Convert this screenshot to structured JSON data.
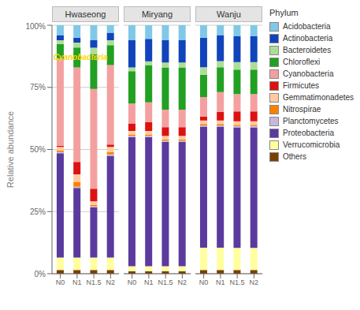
{
  "chart_data": [
    {
      "type": "bar",
      "stacked": true,
      "title": "Hwaseong",
      "categories": [
        "N0",
        "N1",
        "N1.5",
        "N2"
      ],
      "ylabel": "Relative abundance",
      "ylim": [
        0,
        100
      ],
      "yticks": [
        {
          "value": 0,
          "label": "0%"
        },
        {
          "value": 25,
          "label": "25%"
        },
        {
          "value": 50,
          "label": "50%"
        },
        {
          "value": 75,
          "label": "75%"
        },
        {
          "value": 100,
          "label": "100%"
        }
      ],
      "grid": true,
      "annotations": [
        {
          "text": "Cyanobacteria",
          "color": "#FFD700",
          "x": "N0",
          "y": 87
        }
      ],
      "series": [
        {
          "name": "Others",
          "color": "#7B3F00",
          "values": [
            1.5,
            1.5,
            1.50753768844,
            1.5
          ]
        },
        {
          "name": "Verrucomicrobia",
          "color": "#FFFFA0",
          "values": [
            5.0,
            5.0,
            5.02512562814,
            5.0
          ]
        },
        {
          "name": "Proteobacteria",
          "color": "#5B3A9E",
          "values": [
            42.0,
            28.0,
            20.1005025126,
            41.0
          ]
        },
        {
          "name": "Planctomycetes",
          "color": "#C8B8DC",
          "values": [
            0.5,
            0.5,
            0.502512562814,
            0.5
          ]
        },
        {
          "name": "Nitrospirae",
          "color": "#FF8000",
          "values": [
            0.5,
            2.0,
            0.502512562814,
            1.0
          ]
        },
        {
          "name": "Gemmatimonadetes",
          "color": "#FFCCA0",
          "values": [
            1.5,
            3.0,
            1.50753768844,
            2.0
          ]
        },
        {
          "name": "Firmicutes",
          "color": "#DD1111",
          "values": [
            0.5,
            5.0,
            5.02512562814,
            1.0
          ]
        },
        {
          "name": "Cyanobacteria",
          "color": "#F4A0A0",
          "values": [
            35.0,
            38.0,
            40.2010050251,
            32.0
          ]
        },
        {
          "name": "Chloroflexi",
          "color": "#22A022",
          "values": [
            6.0,
            8.0,
            14.0703517588,
            8.0
          ]
        },
        {
          "name": "Bacteroidetes",
          "color": "#AEDD99",
          "values": [
            1.5,
            2.0,
            2.51256281407,
            2.0
          ]
        },
        {
          "name": "Actinobacteria",
          "color": "#1144BB",
          "values": [
            2.0,
            2.0,
            3.01507537688,
            3.0
          ]
        },
        {
          "name": "Acidobacteria",
          "color": "#80C8E8",
          "values": [
            4.0,
            5.0,
            6.03015075377,
            3.0
          ]
        }
      ]
    },
    {
      "type": "bar",
      "stacked": true,
      "title": "Miryang",
      "categories": [
        "N0",
        "N1",
        "N1.5",
        "N2"
      ],
      "ylim": [
        0,
        100
      ],
      "yticks": [
        {
          "value": 0,
          "label": "0%"
        },
        {
          "value": 25,
          "label": "25%"
        },
        {
          "value": 50,
          "label": "50%"
        },
        {
          "value": 75,
          "label": "75%"
        },
        {
          "value": 100,
          "label": "100%"
        }
      ],
      "grid": true,
      "tick_labels": "x",
      "series": [
        {
          "name": "Others",
          "color": "#7B3F00",
          "values": [
            1.0,
            1.0,
            1.0,
            1.0
          ]
        },
        {
          "name": "Verrucomicrobia",
          "color": "#FFFFA0",
          "values": [
            2.0,
            2.0,
            2.0,
            2.0
          ]
        },
        {
          "name": "Proteobacteria",
          "color": "#5B3A9E",
          "values": [
            52.0,
            52.0,
            50.0,
            50.0
          ]
        },
        {
          "name": "Planctomycetes",
          "color": "#C8B8DC",
          "values": [
            0.5,
            0.5,
            0.5,
            0.5
          ]
        },
        {
          "name": "Nitrospirae",
          "color": "#FF8000",
          "values": [
            0.5,
            0.5,
            0.5,
            0.5
          ]
        },
        {
          "name": "Gemmatimonadetes",
          "color": "#FFCCA0",
          "values": [
            1.5,
            1.5,
            1.5,
            1.5
          ]
        },
        {
          "name": "Firmicutes",
          "color": "#DD1111",
          "values": [
            3.0,
            3.5,
            3.5,
            3.5
          ]
        },
        {
          "name": "Cyanobacteria",
          "color": "#F4A0A0",
          "values": [
            8.0,
            8.0,
            7.0,
            7.0
          ]
        },
        {
          "name": "Chloroflexi",
          "color": "#22A022",
          "values": [
            13.0,
            15.0,
            17.0,
            17.0
          ]
        },
        {
          "name": "Bacteroidetes",
          "color": "#AEDD99",
          "values": [
            1.5,
            1.5,
            2.0,
            2.0
          ]
        },
        {
          "name": "Actinobacteria",
          "color": "#1144BB",
          "values": [
            11.0,
            9.0,
            9.0,
            9.0
          ]
        },
        {
          "name": "Acidobacteria",
          "color": "#80C8E8",
          "values": [
            6.0,
            5.5,
            6.0,
            6.0
          ]
        }
      ]
    },
    {
      "type": "bar",
      "stacked": true,
      "title": "Wanju",
      "categories": [
        "N0",
        "N1",
        "N1.5",
        "N2"
      ],
      "ylim": [
        0,
        100
      ],
      "yticks": [
        {
          "value": 0,
          "label": "0%"
        },
        {
          "value": 25,
          "label": "25%"
        },
        {
          "value": 50,
          "label": "50%"
        },
        {
          "value": 75,
          "label": "75%"
        },
        {
          "value": 100,
          "label": "100%"
        }
      ],
      "grid": true,
      "tick_labels": "x",
      "legend": "right",
      "legend_title": "Phylum",
      "series": [
        {
          "name": "Others",
          "color": "#7B3F00",
          "values": [
            1.49253731343,
            1.49253731343,
            1.48514851485,
            1.48514851485
          ]
        },
        {
          "name": "Verrucomicrobia",
          "color": "#FFFFA0",
          "values": [
            8.9552238806,
            8.9552238806,
            8.91089108911,
            8.91089108911
          ]
        },
        {
          "name": "Proteobacteria",
          "color": "#5B3A9E",
          "values": [
            48.7562189055,
            48.7562189055,
            48.5148514851,
            48.5148514851
          ]
        },
        {
          "name": "Planctomycetes",
          "color": "#C8B8DC",
          "values": [
            0.497512437811,
            0.497512437811,
            0.49504950495,
            0.49504950495
          ]
        },
        {
          "name": "Nitrospirae",
          "color": "#FF8000",
          "values": [
            0.497512437811,
            0.497512437811,
            0.49504950495,
            0.49504950495
          ]
        },
        {
          "name": "Gemmatimonadetes",
          "color": "#FFCCA0",
          "values": [
            1.49253731343,
            1.49253731343,
            1.48514851485,
            1.48514851485
          ]
        },
        {
          "name": "Firmicutes",
          "color": "#DD1111",
          "values": [
            1.49253731343,
            3.48258706468,
            3.9603960396,
            3.9603960396
          ]
        },
        {
          "name": "Cyanobacteria",
          "color": "#F4A0A0",
          "values": [
            7.96019900498,
            7.96019900498,
            6.93069306931,
            6.93069306931
          ]
        },
        {
          "name": "Chloroflexi",
          "color": "#22A022",
          "values": [
            8.9552238806,
            9.95024875622,
            9.90099009901,
            9.90099009901
          ]
        },
        {
          "name": "Bacteroidetes",
          "color": "#AEDD99",
          "values": [
            2.98507462687,
            2.48756218905,
            2.9702970297,
            2.9702970297
          ]
        },
        {
          "name": "Actinobacteria",
          "color": "#1144BB",
          "values": [
            11.9402985075,
            10.447761194,
            10.396039604,
            10.396039604
          ]
        },
        {
          "name": "Acidobacteria",
          "color": "#80C8E8",
          "values": [
            4.97512437811,
            3.98009950249,
            4.45544554455,
            4.45544554455
          ]
        }
      ]
    }
  ]
}
